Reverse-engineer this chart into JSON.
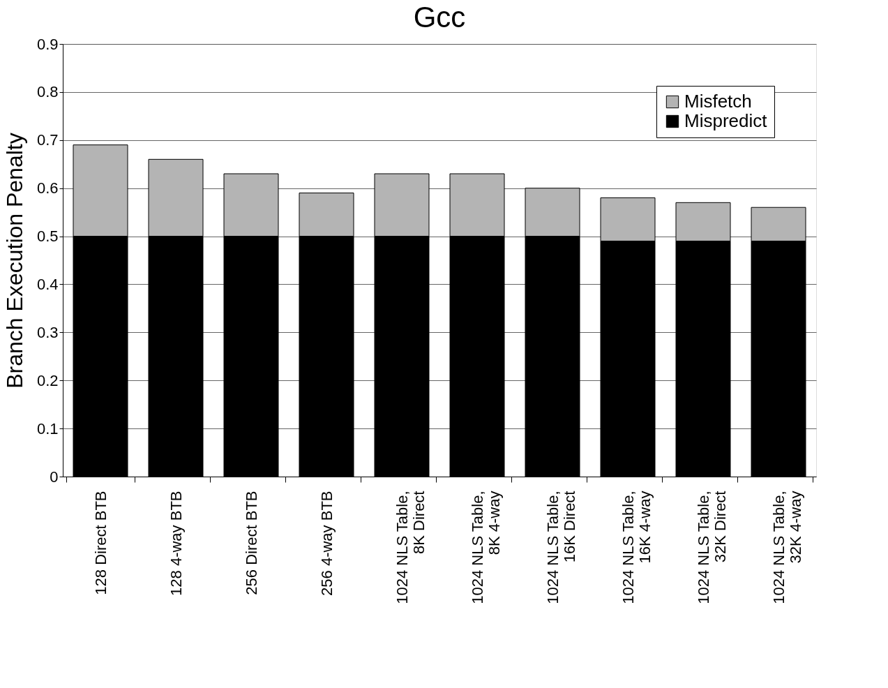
{
  "chart_data": {
    "type": "bar",
    "title": "Gcc",
    "ylabel": "Branch Execution Penalty",
    "stacked": true,
    "categories": [
      "128 Direct BTB",
      "128 4-way  BTB",
      "256 Direct BTB",
      "256 4-way  BTB",
      "1024 NLS Table,\n8K Direct",
      "1024 NLS Table,\n8K 4-way",
      "1024 NLS Table,\n16K Direct",
      "1024 NLS Table,\n16K 4-way",
      "1024 NLS Table,\n32K Direct",
      "1024 NLS Table,\n32K 4-way"
    ],
    "series": [
      {
        "name": "Mispredict",
        "color": "#000000",
        "values": [
          0.5,
          0.5,
          0.5,
          0.5,
          0.5,
          0.5,
          0.5,
          0.49,
          0.49,
          0.49
        ]
      },
      {
        "name": "Misfetch",
        "color": "#b4b4b4",
        "values": [
          0.19,
          0.16,
          0.13,
          0.09,
          0.13,
          0.13,
          0.1,
          0.09,
          0.08,
          0.07
        ]
      }
    ],
    "ylim": [
      0,
      0.9
    ],
    "yticks": [
      0,
      0.1,
      0.2,
      0.3,
      0.4,
      0.5,
      0.6,
      0.7,
      0.8,
      0.9
    ],
    "grid": "y",
    "legend": "top right"
  }
}
